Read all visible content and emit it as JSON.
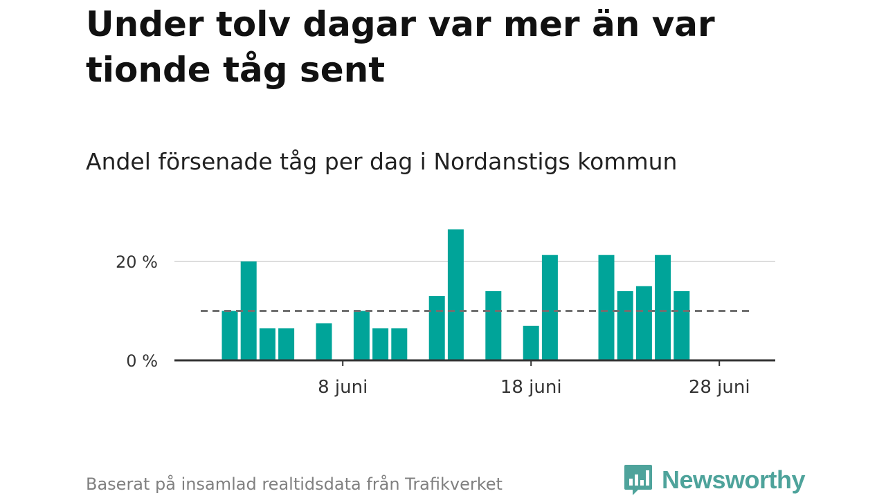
{
  "header": {
    "title": "Under tolv dagar var mer än var tionde tåg sent",
    "subtitle": "Andel försenade tåg per dag i Nordanstigs kommun"
  },
  "footer": {
    "source": "Baserat på insamlad realtidsdata från Trafikverket"
  },
  "brand": {
    "name": "Newsworthy",
    "color": "#4ea39b",
    "icon": "newsworthy-logo-icon"
  },
  "colors": {
    "bar": "#00a499",
    "reference_line": "#707070",
    "grid": "#dddddd",
    "axis": "#333333"
  },
  "chart_data": {
    "type": "bar",
    "x": [
      "2 juni",
      "3 juni",
      "4 juni",
      "5 juni",
      "6 juni",
      "7 juni",
      "8 juni",
      "9 juni",
      "10 juni",
      "11 juni",
      "12 juni",
      "13 juni",
      "14 juni",
      "15 juni",
      "16 juni",
      "17 juni",
      "18 juni",
      "19 juni",
      "20 juni",
      "21 juni",
      "22 juni",
      "23 juni",
      "24 juni",
      "25 juni",
      "26 juni",
      "27 juni",
      "28 juni",
      "29 juni"
    ],
    "values": [
      10,
      20,
      6.5,
      6.5,
      null,
      7.5,
      0,
      10,
      6.5,
      6.5,
      null,
      13,
      26.5,
      null,
      14,
      null,
      7,
      21.3,
      null,
      null,
      21.3,
      14,
      15,
      21.3,
      14,
      null,
      null,
      null
    ],
    "y_ticks": [
      {
        "value": 0,
        "label": "0 %"
      },
      {
        "value": 20,
        "label": "20 %"
      }
    ],
    "x_ticks": [
      {
        "value": "8 juni",
        "label": "8 juni"
      },
      {
        "value": "18 juni",
        "label": "18 juni"
      },
      {
        "value": "28 juni",
        "label": "28 juni"
      }
    ],
    "reference_line": 10,
    "ylim": [
      0,
      27
    ],
    "grid": true,
    "xlabel": "",
    "ylabel": ""
  }
}
